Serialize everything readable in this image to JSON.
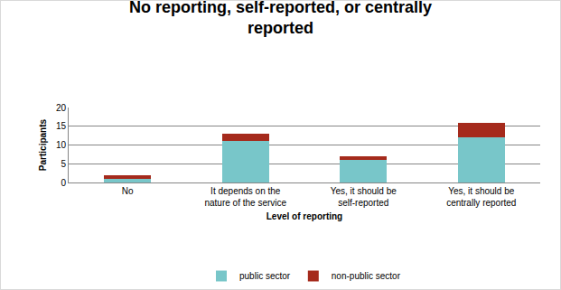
{
  "chart_data": {
    "type": "bar",
    "title": "No reporting, self-reported, or centrally reported",
    "x_label": "Level of reporting",
    "y_label": "Participants",
    "categories": [
      "No",
      "It depends on the nature of the service",
      "Yes, it should be self-reported",
      "Yes, it should be centrally reported"
    ],
    "series": [
      {
        "name": "public sector",
        "color": "#78c6c9",
        "values": [
          1,
          11,
          6,
          12
        ]
      },
      {
        "name": "non-public sector",
        "color": "#a52a1c",
        "values": [
          1,
          2,
          1,
          4
        ]
      }
    ],
    "stacked": true,
    "ylim": [
      0,
      20
    ],
    "yticks": [
      0,
      5,
      10,
      15,
      20
    ],
    "grid": true,
    "legend": "bottom"
  }
}
